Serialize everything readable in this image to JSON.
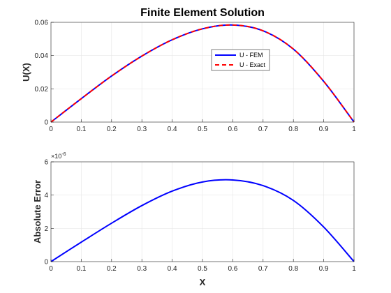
{
  "chart_data": [
    {
      "type": "line",
      "title": "Finite Element Solution",
      "xlabel": "",
      "ylabel": "U(X)",
      "xlim": [
        0,
        1
      ],
      "ylim": [
        0,
        0.06
      ],
      "x_ticks": [
        "0",
        "0.1",
        "0.2",
        "0.3",
        "0.4",
        "0.5",
        "0.6",
        "0.7",
        "0.8",
        "0.9",
        "1"
      ],
      "y_ticks": [
        "0",
        "0.02",
        "0.04",
        "0.06"
      ],
      "grid": true,
      "legend_position": "upper-right-inside",
      "x": [
        0,
        0.1,
        0.2,
        0.3,
        0.4,
        0.5,
        0.6,
        0.7,
        0.8,
        0.9,
        1
      ],
      "series": [
        {
          "name": "U - FEM",
          "color": "#0000ff",
          "style": "solid",
          "values": [
            0,
            0.0141,
            0.0277,
            0.0397,
            0.0495,
            0.0561,
            0.0584,
            0.0549,
            0.0439,
            0.0245,
            0
          ]
        },
        {
          "name": "U - Exact",
          "color": "#ff0000",
          "style": "dashed",
          "values": [
            0,
            0.0141,
            0.0277,
            0.0397,
            0.0495,
            0.0561,
            0.0584,
            0.0549,
            0.0439,
            0.0245,
            0
          ]
        }
      ]
    },
    {
      "type": "line",
      "title": "",
      "xlabel": "X",
      "ylabel": "Absolute Error",
      "xlim": [
        0,
        1
      ],
      "ylim": [
        0,
        6
      ],
      "y_multiplier": "×10",
      "y_multiplier_exp": "-6",
      "x_ticks": [
        "0",
        "0.1",
        "0.2",
        "0.3",
        "0.4",
        "0.5",
        "0.6",
        "0.7",
        "0.8",
        "0.9",
        "1"
      ],
      "y_ticks": [
        "0",
        "2",
        "4",
        "6"
      ],
      "grid": true,
      "x": [
        0,
        0.1,
        0.2,
        0.3,
        0.4,
        0.5,
        0.6,
        0.7,
        0.8,
        0.9,
        1
      ],
      "series": [
        {
          "color": "#0000ff",
          "style": "solid",
          "values": [
            0,
            1.17,
            2.31,
            3.37,
            4.24,
            4.79,
            4.91,
            4.57,
            3.68,
            2.08,
            0
          ]
        }
      ]
    }
  ]
}
